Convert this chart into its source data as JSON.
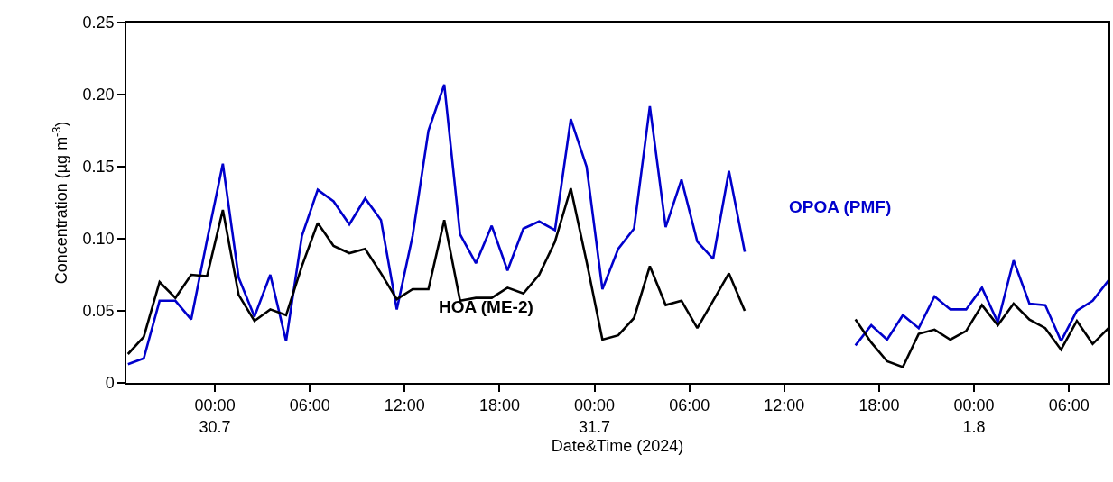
{
  "chart_data": {
    "type": "line",
    "xlabel": "Date&Time (2024)",
    "ylabel": "Concentration (µg m$^{-3}$)",
    "xlim": [
      "2024-07-29T18:24",
      "2024-08-01T08:30"
    ],
    "xticks": [
      {
        "value": "2024-07-30T00:00",
        "label": "00:00\n30.7"
      },
      {
        "value": "2024-07-30T06:00",
        "label": "06:00"
      },
      {
        "value": "2024-07-30T12:00",
        "label": "12:00"
      },
      {
        "value": "2024-07-30T18:00",
        "label": "18:00"
      },
      {
        "value": "2024-07-31T00:00",
        "label": "00:00\n31.7"
      },
      {
        "value": "2024-07-31T06:00",
        "label": "06:00"
      },
      {
        "value": "2024-07-31T12:00",
        "label": "12:00"
      },
      {
        "value": "2024-07-31T18:00",
        "label": "18:00"
      },
      {
        "value": "2024-08-01T00:00",
        "label": "00:00\n1.8"
      },
      {
        "value": "2024-08-01T06:00",
        "label": "06:00"
      }
    ],
    "ylim": [
      0,
      0.25
    ],
    "yticks": [
      0,
      {
        "value": 0.05,
        "label": "0.05"
      },
      {
        "value": 0.1,
        "label": "0.10"
      },
      {
        "value": 0.15,
        "label": "0.15"
      },
      {
        "value": 0.2,
        "label": "0.20"
      },
      {
        "value": 0.25,
        "label": "0.25"
      }
    ],
    "x": [
      "2024-07-29T18:30",
      "2024-07-29T19:30",
      "2024-07-29T20:30",
      "2024-07-29T21:30",
      "2024-07-29T22:30",
      "2024-07-29T23:30",
      "2024-07-30T00:30",
      "2024-07-30T01:30",
      "2024-07-30T02:30",
      "2024-07-30T03:30",
      "2024-07-30T04:30",
      "2024-07-30T05:30",
      "2024-07-30T06:30",
      "2024-07-30T07:30",
      "2024-07-30T08:30",
      "2024-07-30T09:30",
      "2024-07-30T10:30",
      "2024-07-30T11:30",
      "2024-07-30T12:30",
      "2024-07-30T13:30",
      "2024-07-30T14:30",
      "2024-07-30T15:30",
      "2024-07-30T16:30",
      "2024-07-30T17:30",
      "2024-07-30T18:30",
      "2024-07-30T19:30",
      "2024-07-30T20:30",
      "2024-07-30T21:30",
      "2024-07-30T22:30",
      "2024-07-30T23:30",
      "2024-07-31T00:30",
      "2024-07-31T01:30",
      "2024-07-31T02:30",
      "2024-07-31T03:30",
      "2024-07-31T04:30",
      "2024-07-31T05:30",
      "2024-07-31T06:30",
      "2024-07-31T07:30",
      "2024-07-31T08:30",
      "2024-07-31T09:30",
      "2024-07-31T13:00",
      "2024-07-31T16:30",
      "2024-07-31T17:30",
      "2024-07-31T18:30",
      "2024-07-31T19:30",
      "2024-07-31T20:30",
      "2024-07-31T21:30",
      "2024-07-31T22:30",
      "2024-07-31T23:30",
      "2024-08-01T00:30",
      "2024-08-01T01:30",
      "2024-08-01T02:30",
      "2024-08-01T03:30",
      "2024-08-01T04:30",
      "2024-08-01T05:30",
      "2024-08-01T06:30",
      "2024-08-01T07:30",
      "2024-08-01T08:30"
    ],
    "series": [
      {
        "name": "OPOA (PMF)",
        "color": "#0000cc",
        "values": [
          0.013,
          0.017,
          0.057,
          0.057,
          0.044,
          0.099,
          0.152,
          0.073,
          0.046,
          0.075,
          0.029,
          0.102,
          0.134,
          0.126,
          0.11,
          0.128,
          0.113,
          0.051,
          0.102,
          0.175,
          0.207,
          0.103,
          0.083,
          0.109,
          0.078,
          0.107,
          0.112,
          0.106,
          0.183,
          0.15,
          0.065,
          0.093,
          0.107,
          0.192,
          0.108,
          0.141,
          0.098,
          0.086,
          0.147,
          0.091,
          null,
          0.026,
          0.04,
          0.03,
          0.047,
          0.038,
          0.06,
          0.051,
          0.051,
          0.066,
          0.042,
          0.085,
          0.055,
          0.054,
          0.029,
          0.05,
          0.057,
          0.071
        ]
      },
      {
        "name": "HOA (ME-2)",
        "color": "#000000",
        "values": [
          0.02,
          0.032,
          0.07,
          0.059,
          0.075,
          0.074,
          0.12,
          0.061,
          0.043,
          0.051,
          0.047,
          0.081,
          0.111,
          0.095,
          0.09,
          0.093,
          0.076,
          0.058,
          0.065,
          0.065,
          0.113,
          0.057,
          0.059,
          0.059,
          0.066,
          0.062,
          0.075,
          0.098,
          0.135,
          0.084,
          0.03,
          0.033,
          0.045,
          0.081,
          0.054,
          0.057,
          0.038,
          0.057,
          0.076,
          0.05,
          null,
          0.044,
          0.028,
          0.015,
          0.011,
          0.034,
          0.037,
          0.03,
          0.036,
          0.054,
          0.04,
          0.055,
          0.044,
          0.038,
          0.023,
          0.043,
          0.027,
          0.038
        ]
      }
    ],
    "legend": false,
    "marker": "none",
    "line_style": "solid"
  }
}
